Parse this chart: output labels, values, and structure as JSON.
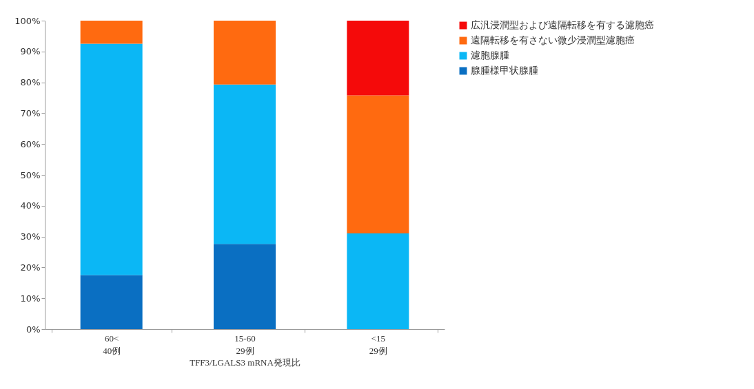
{
  "chart_data": {
    "type": "bar",
    "stacked": true,
    "xlabel": "TFF3/LGALS3 mRNA発現比",
    "categories": [
      "60<\n40例",
      "15-60\n29例",
      "<15\n29例"
    ],
    "series": [
      {
        "name": "腺腫様甲状腺腫",
        "color": "#0a6fc2",
        "values": [
          17.5,
          27.6,
          0
        ]
      },
      {
        "name": "濾胞腺腫",
        "color": "#0bb7f5",
        "values": [
          75,
          51.7,
          31
        ]
      },
      {
        "name": "遠隔転移を有さない微少浸潤型濾胞癌",
        "color": "#ff6a10",
        "values": [
          7.5,
          20.7,
          44.8
        ]
      },
      {
        "name": "広汎浸潤型および遠隔転移を有する濾胞癌",
        "color": "#f50a0a",
        "values": [
          0,
          0,
          24.2
        ]
      }
    ],
    "ylim": [
      0,
      100
    ],
    "yticks": [
      {
        "value": 0,
        "label": "0%"
      },
      {
        "value": 10,
        "label": "10%"
      },
      {
        "value": 20,
        "label": "20%"
      },
      {
        "value": 30,
        "label": "30%"
      },
      {
        "value": 40,
        "label": "40%"
      },
      {
        "value": 50,
        "label": "50%"
      },
      {
        "value": 60,
        "label": "60%"
      },
      {
        "value": 70,
        "label": "70%"
      },
      {
        "value": 80,
        "label": "80%"
      },
      {
        "value": 90,
        "label": "90%"
      },
      {
        "value": 100,
        "label": "100%"
      }
    ],
    "grid": false,
    "legend": "right"
  }
}
